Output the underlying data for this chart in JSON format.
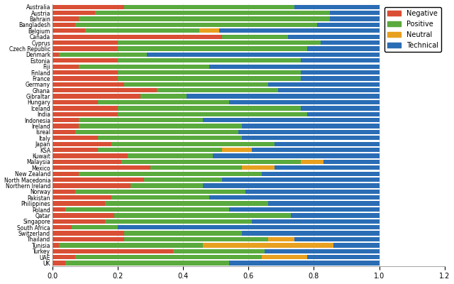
{
  "countries": [
    "Australia",
    "Austria",
    "Bahrain",
    "Bangladesh",
    "Belgium",
    "Canada",
    "Cyprus",
    "Czech Republic",
    "Denmark",
    "Estonia",
    "Fiji",
    "Finland",
    "France",
    "Germany",
    "Ghana",
    "Gibraltar",
    "Hungary",
    "Iceland",
    "India",
    "Indonesia",
    "Ireland",
    "Isreal",
    "Italy",
    "Japan",
    "KSA",
    "Kuwait",
    "Malaysia",
    "Mexico",
    "New Zealand",
    "North Macedonia",
    "Northern Ireland",
    "Norway",
    "Pakistan",
    "Philippines",
    "Poland",
    "Qatar",
    "Singapore",
    "South Africa",
    "Switzerland",
    "Thailand",
    "Tunisia",
    "Turkey",
    "UAE",
    "UK"
  ],
  "negative": [
    0.22,
    0.13,
    0.08,
    0.07,
    0.1,
    0.52,
    0.2,
    0.2,
    0.02,
    0.2,
    0.08,
    0.2,
    0.2,
    0.22,
    0.32,
    0.27,
    0.14,
    0.2,
    0.2,
    0.08,
    0.08,
    0.07,
    0.14,
    0.18,
    0.14,
    0.23,
    0.21,
    0.3,
    0.08,
    0.28,
    0.24,
    0.07,
    0.18,
    0.16,
    0.04,
    0.19,
    0.16,
    0.06,
    0.22,
    0.22,
    0.02,
    0.37,
    0.07,
    0.04
  ],
  "positive": [
    0.52,
    0.72,
    0.77,
    0.74,
    0.35,
    0.2,
    0.62,
    0.58,
    0.27,
    0.56,
    0.4,
    0.56,
    0.56,
    0.44,
    0.37,
    0.14,
    0.4,
    0.56,
    0.58,
    0.38,
    0.5,
    0.5,
    0.44,
    0.5,
    0.38,
    0.26,
    0.55,
    0.28,
    0.56,
    0.24,
    0.22,
    0.52,
    0.3,
    0.5,
    0.5,
    0.54,
    0.45,
    0.14,
    0.36,
    0.44,
    0.44,
    0.28,
    0.57,
    0.5
  ],
  "neutral": [
    0.0,
    0.0,
    0.0,
    0.0,
    0.06,
    0.0,
    0.0,
    0.0,
    0.0,
    0.0,
    0.0,
    0.0,
    0.0,
    0.0,
    0.0,
    0.0,
    0.0,
    0.0,
    0.0,
    0.0,
    0.0,
    0.0,
    0.0,
    0.0,
    0.09,
    0.0,
    0.07,
    0.1,
    0.0,
    0.0,
    0.0,
    0.0,
    0.0,
    0.0,
    0.0,
    0.0,
    0.0,
    0.0,
    0.0,
    0.08,
    0.4,
    0.0,
    0.14,
    0.0
  ],
  "technical": [
    0.26,
    0.15,
    0.15,
    0.19,
    0.49,
    0.28,
    0.18,
    0.22,
    0.71,
    0.24,
    0.52,
    0.24,
    0.24,
    0.34,
    0.31,
    0.59,
    0.46,
    0.24,
    0.22,
    0.54,
    0.42,
    0.43,
    0.42,
    0.32,
    0.39,
    0.51,
    0.17,
    0.32,
    0.36,
    0.48,
    0.54,
    0.41,
    0.52,
    0.34,
    0.46,
    0.27,
    0.39,
    0.8,
    0.42,
    0.26,
    0.14,
    0.35,
    0.22,
    0.46
  ],
  "colors": {
    "negative": "#d94f35",
    "positive": "#5aaa3e",
    "neutral": "#e8a020",
    "technical": "#2a6db5"
  },
  "xlim": [
    0,
    1.2
  ],
  "figsize": [
    6.4,
    4.0
  ],
  "dpi": 100
}
